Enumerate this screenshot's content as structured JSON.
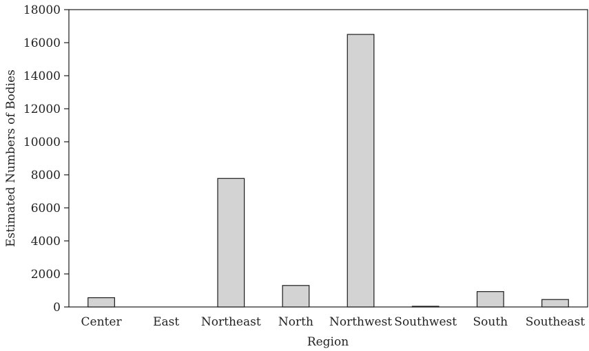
{
  "chart_data": {
    "type": "bar",
    "categories": [
      "Center",
      "East",
      "Northeast",
      "North",
      "Northwest",
      "Southwest",
      "South",
      "Southeast"
    ],
    "values": [
      560,
      0,
      7780,
      1300,
      16500,
      40,
      930,
      450
    ],
    "xlabel": "Region",
    "ylabel": "Estimated Numbers of Bodies",
    "ylim": [
      0,
      18000
    ],
    "yticks": [
      0,
      2000,
      4000,
      6000,
      8000,
      10000,
      12000,
      14000,
      16000,
      18000
    ],
    "grid": false,
    "legend": "none",
    "bar_color": "#d3d3d3",
    "bar_edge_color": "#1a1a1a"
  }
}
